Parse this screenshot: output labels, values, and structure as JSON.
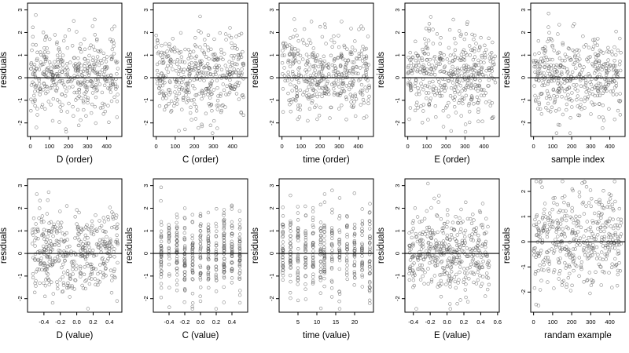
{
  "chart_data": [
    {
      "type": "scatter",
      "xlabel": "D (order)",
      "ylabel": "residuals",
      "xlim": [
        -15,
        480
      ],
      "ylim": [
        -2.6,
        3.3
      ],
      "xticks": [
        0,
        100,
        200,
        300,
        400
      ],
      "xtick_labels": [
        "0",
        "100",
        "200",
        "300",
        "400"
      ],
      "yticks": [
        -2,
        -1,
        0,
        1,
        2,
        3
      ],
      "ytick_labels": [
        "-2",
        "-1",
        "0",
        "1",
        "2",
        "3"
      ],
      "hline": 0,
      "x_mode": "uniform",
      "x_range": [
        0,
        460
      ],
      "n_points": 420
    },
    {
      "type": "scatter",
      "xlabel": "C (order)",
      "ylabel": "residuals",
      "xlim": [
        -15,
        480
      ],
      "ylim": [
        -2.6,
        3.3
      ],
      "xticks": [
        0,
        100,
        200,
        300,
        400
      ],
      "xtick_labels": [
        "0",
        "100",
        "200",
        "300",
        "400"
      ],
      "yticks": [
        -2,
        -1,
        0,
        1,
        2,
        3
      ],
      "ytick_labels": [
        "-2",
        "-1",
        "0",
        "1",
        "2",
        "3"
      ],
      "hline": 0,
      "x_mode": "uniform",
      "x_range": [
        0,
        460
      ],
      "n_points": 420
    },
    {
      "type": "scatter",
      "xlabel": "time (order)",
      "ylabel": "residuals",
      "xlim": [
        -15,
        480
      ],
      "ylim": [
        -2.6,
        3.3
      ],
      "xticks": [
        0,
        100,
        200,
        300,
        400
      ],
      "xtick_labels": [
        "0",
        "100",
        "200",
        "300",
        "400"
      ],
      "yticks": [
        -2,
        -1,
        0,
        1,
        2,
        3
      ],
      "ytick_labels": [
        "-2",
        "-1",
        "0",
        "1",
        "2",
        "3"
      ],
      "hline": 0,
      "x_mode": "uniform",
      "x_range": [
        0,
        460
      ],
      "n_points": 420
    },
    {
      "type": "scatter",
      "xlabel": "E (order)",
      "ylabel": "residuals",
      "xlim": [
        -15,
        480
      ],
      "ylim": [
        -2.6,
        3.3
      ],
      "xticks": [
        0,
        100,
        200,
        300,
        400
      ],
      "xtick_labels": [
        "0",
        "100",
        "200",
        "300",
        "400"
      ],
      "yticks": [
        -2,
        -1,
        0,
        1,
        2,
        3
      ],
      "ytick_labels": [
        "-2",
        "-1",
        "0",
        "1",
        "2",
        "3"
      ],
      "hline": 0,
      "x_mode": "uniform",
      "x_range": [
        0,
        460
      ],
      "n_points": 420
    },
    {
      "type": "scatter",
      "xlabel": "sample index",
      "ylabel": "residuals",
      "xlim": [
        -15,
        480
      ],
      "ylim": [
        -2.6,
        3.3
      ],
      "xticks": [
        0,
        100,
        200,
        300,
        400
      ],
      "xtick_labels": [
        "0",
        "100",
        "200",
        "300",
        "400"
      ],
      "yticks": [
        -2,
        -1,
        0,
        1,
        2,
        3
      ],
      "ytick_labels": [
        "-2",
        "-1",
        "0",
        "1",
        "2",
        "3"
      ],
      "hline": 0,
      "x_mode": "uniform",
      "x_range": [
        0,
        460
      ],
      "n_points": 420
    },
    {
      "type": "scatter",
      "xlabel": "D (value)",
      "ylabel": "residuals",
      "xlim": [
        -0.6,
        0.55
      ],
      "ylim": [
        -2.6,
        3.3
      ],
      "xticks": [
        -0.4,
        -0.2,
        0,
        0.2,
        0.4
      ],
      "xtick_labels": [
        "-0.4",
        "-0.2",
        "0.0",
        "0.2",
        "0.4"
      ],
      "yticks": [
        -2,
        -1,
        0,
        1,
        2,
        3
      ],
      "ytick_labels": [
        "-2",
        "-1",
        "0",
        "1",
        "2",
        "3"
      ],
      "hline": 0,
      "x_mode": "uniform",
      "x_range": [
        -0.55,
        0.5
      ],
      "n_points": 420
    },
    {
      "type": "scatter",
      "xlabel": "C (value)",
      "ylabel": "residuals",
      "xlim": [
        -0.6,
        0.6
      ],
      "ylim": [
        -2.6,
        3.3
      ],
      "xticks": [
        -0.4,
        -0.2,
        0,
        0.2,
        0.4
      ],
      "xtick_labels": [
        "-0.4",
        "-0.2",
        "0.0",
        "0.2",
        "0.4"
      ],
      "yticks": [
        -2,
        -1,
        0,
        1,
        2,
        3
      ],
      "ytick_labels": [
        "-2",
        "-1",
        "0",
        "1",
        "2",
        "3"
      ],
      "hline": 0,
      "x_mode": "discrete",
      "x_levels": [
        -0.5,
        -0.4,
        -0.3,
        -0.2,
        -0.1,
        0,
        0.1,
        0.2,
        0.3,
        0.4,
        0.5
      ],
      "n_points": 420
    },
    {
      "type": "scatter",
      "xlabel": "time (value)",
      "ylabel": "residuals",
      "xlim": [
        0,
        25
      ],
      "ylim": [
        -2.6,
        3.3
      ],
      "xticks": [
        5,
        10,
        15,
        20
      ],
      "xtick_labels": [
        "5",
        "10",
        "15",
        "20"
      ],
      "yticks": [
        -2,
        -1,
        0,
        1,
        2,
        3
      ],
      "ytick_labels": [
        "-2",
        "-1",
        "0",
        "1",
        "2",
        "3"
      ],
      "hline": 0,
      "x_mode": "discrete",
      "x_levels": [
        1,
        3,
        5,
        7,
        9,
        11,
        12,
        14,
        16,
        18,
        20,
        22,
        24
      ],
      "n_points": 420
    },
    {
      "type": "scatter",
      "xlabel": "E (value)",
      "ylabel": "residuals",
      "xlim": [
        -0.5,
        0.62
      ],
      "ylim": [
        -2.6,
        3.3
      ],
      "xticks": [
        -0.4,
        -0.2,
        0,
        0.2,
        0.4,
        0.6
      ],
      "xtick_labels": [
        "-0.4",
        "-0.2",
        "0.0",
        "0.2",
        "0.4",
        "0.6"
      ],
      "yticks": [
        -2,
        -1,
        0,
        1,
        2,
        3
      ],
      "ytick_labels": [
        "-2",
        "-1",
        "0",
        "1",
        "2",
        "3"
      ],
      "hline": 0,
      "x_mode": "uniform",
      "x_range": [
        -0.45,
        0.5
      ],
      "n_points": 420
    },
    {
      "type": "scatter",
      "xlabel": "randam example",
      "ylabel": "residuals",
      "xlim": [
        -15,
        480
      ],
      "ylim": [
        -2.8,
        2.5
      ],
      "xticks": [
        0,
        100,
        200,
        300,
        400
      ],
      "xtick_labels": [
        "0",
        "100",
        "200",
        "300",
        "400"
      ],
      "yticks": [
        -2,
        -1,
        0,
        1,
        2
      ],
      "ytick_labels": [
        "-2",
        "-1",
        "0",
        "1",
        "2"
      ],
      "hline": 0,
      "x_mode": "uniform",
      "x_range": [
        0,
        460
      ],
      "n_points": 420
    }
  ],
  "colors": {
    "points": "#555555",
    "axis": "#000000",
    "background": "#ffffff"
  }
}
